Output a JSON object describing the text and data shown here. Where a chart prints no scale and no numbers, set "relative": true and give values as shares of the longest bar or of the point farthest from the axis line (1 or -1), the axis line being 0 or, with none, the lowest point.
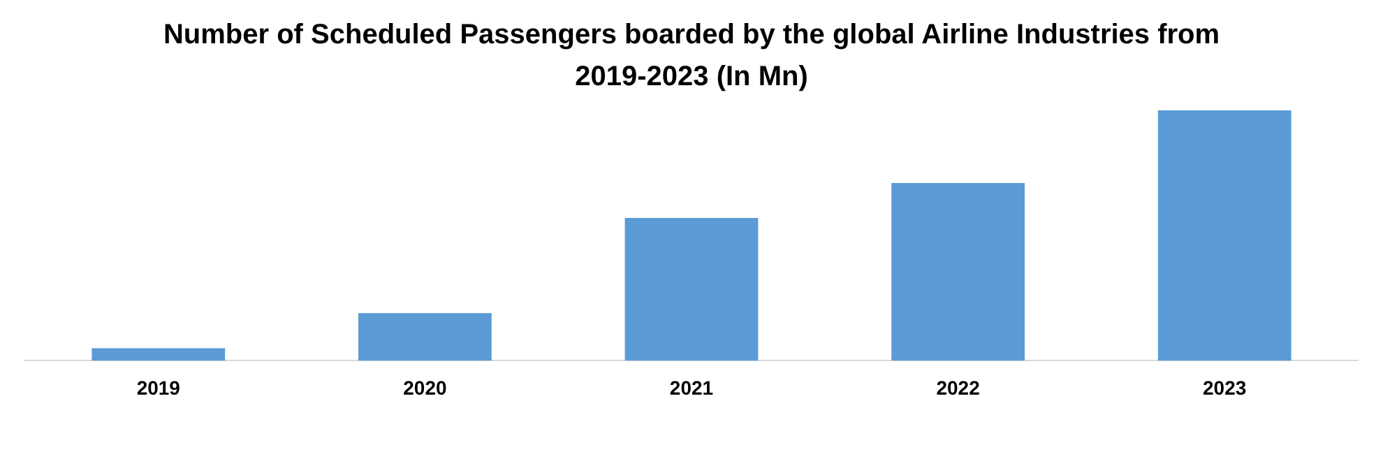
{
  "chart_data": {
    "type": "bar",
    "title": "Number of Scheduled Passengers boarded by the global Airline Industries from 2019-2023 (In Mn)",
    "categories": [
      "2019",
      "2020",
      "2021",
      "2022",
      "2023"
    ],
    "values": [
      0.05,
      0.19,
      0.57,
      0.71,
      1
    ],
    "color": "#5b9bd5",
    "relative": true,
    "grid": false,
    "legend": false
  }
}
